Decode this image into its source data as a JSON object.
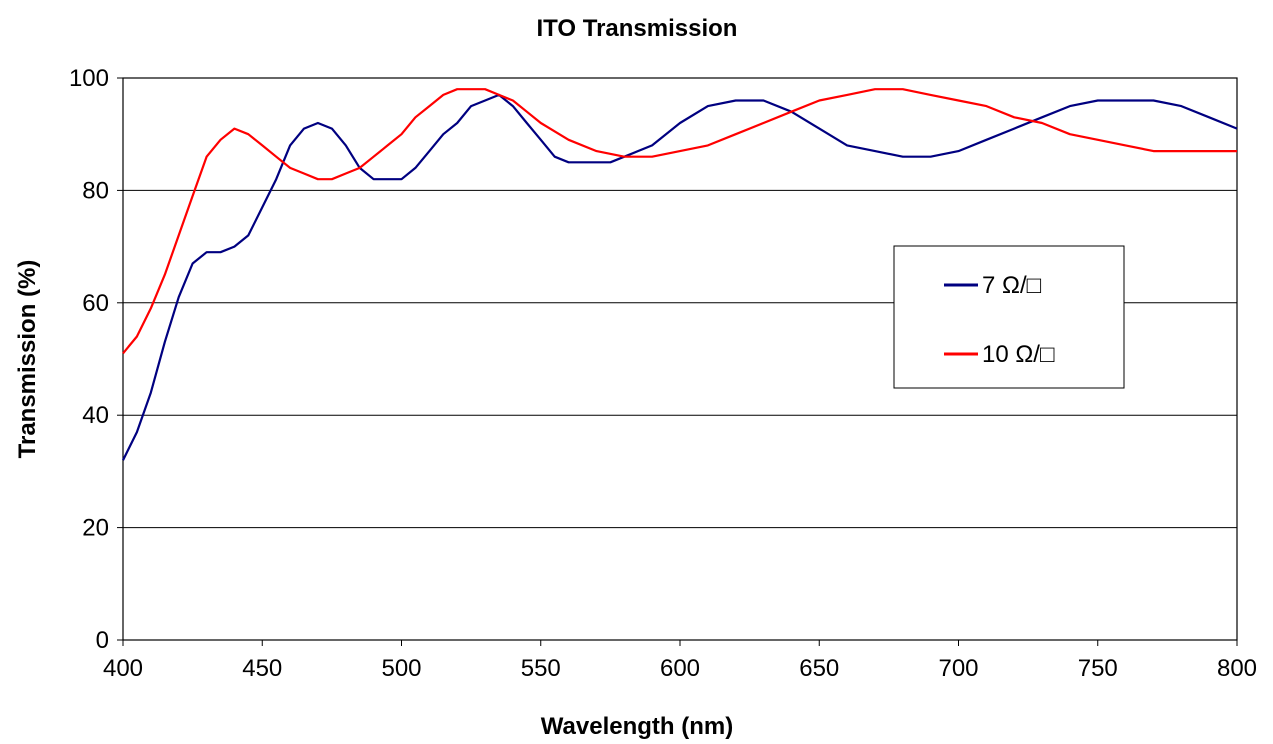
{
  "chart_data": {
    "type": "line",
    "title": "ITO Transmission",
    "xlabel": "Wavelength (nm)",
    "ylabel": "Transmission (%)",
    "xlim": [
      400,
      800
    ],
    "ylim": [
      0,
      100
    ],
    "x_ticks": [
      400,
      450,
      500,
      550,
      600,
      650,
      700,
      750,
      800
    ],
    "y_ticks": [
      0,
      20,
      40,
      60,
      80,
      100
    ],
    "grid": "horizontal",
    "legend": "right",
    "series": [
      {
        "name": "7 Ω/□",
        "color": "#000080",
        "x": [
          400,
          405,
          410,
          415,
          420,
          425,
          430,
          435,
          440,
          445,
          450,
          455,
          460,
          465,
          470,
          475,
          480,
          485,
          490,
          495,
          500,
          505,
          510,
          515,
          520,
          525,
          530,
          535,
          540,
          545,
          550,
          555,
          560,
          565,
          570,
          575,
          580,
          590,
          600,
          610,
          620,
          625,
          630,
          640,
          650,
          660,
          670,
          680,
          690,
          700,
          710,
          720,
          730,
          740,
          750,
          760,
          765,
          770,
          780,
          790,
          800
        ],
        "y": [
          32,
          37,
          44,
          53,
          61,
          67,
          69,
          69,
          70,
          72,
          77,
          82,
          88,
          91,
          92,
          91,
          88,
          84,
          82,
          82,
          82,
          84,
          87,
          90,
          92,
          95,
          96,
          97,
          95,
          92,
          89,
          86,
          85,
          85,
          85,
          85,
          86,
          88,
          92,
          95,
          96,
          96,
          96,
          94,
          91,
          88,
          87,
          86,
          86,
          87,
          89,
          91,
          93,
          95,
          96,
          96,
          96,
          96,
          95,
          93,
          91
        ]
      },
      {
        "name": "10 Ω/□",
        "color": "#ff0000",
        "x": [
          400,
          405,
          410,
          415,
          420,
          425,
          430,
          435,
          440,
          445,
          450,
          455,
          460,
          465,
          470,
          475,
          480,
          485,
          490,
          495,
          500,
          505,
          510,
          515,
          520,
          525,
          530,
          535,
          540,
          545,
          550,
          560,
          570,
          580,
          590,
          600,
          610,
          620,
          630,
          640,
          650,
          660,
          670,
          675,
          680,
          690,
          700,
          710,
          720,
          730,
          740,
          750,
          760,
          770,
          780,
          790,
          800
        ],
        "y": [
          51,
          54,
          59,
          65,
          72,
          79,
          86,
          89,
          91,
          90,
          88,
          86,
          84,
          83,
          82,
          82,
          83,
          84,
          86,
          88,
          90,
          93,
          95,
          97,
          98,
          98,
          98,
          97,
          96,
          94,
          92,
          89,
          87,
          86,
          86,
          87,
          88,
          90,
          92,
          94,
          96,
          97,
          98,
          98,
          98,
          97,
          96,
          95,
          93,
          92,
          90,
          89,
          88,
          87,
          87,
          87,
          87
        ]
      }
    ]
  }
}
